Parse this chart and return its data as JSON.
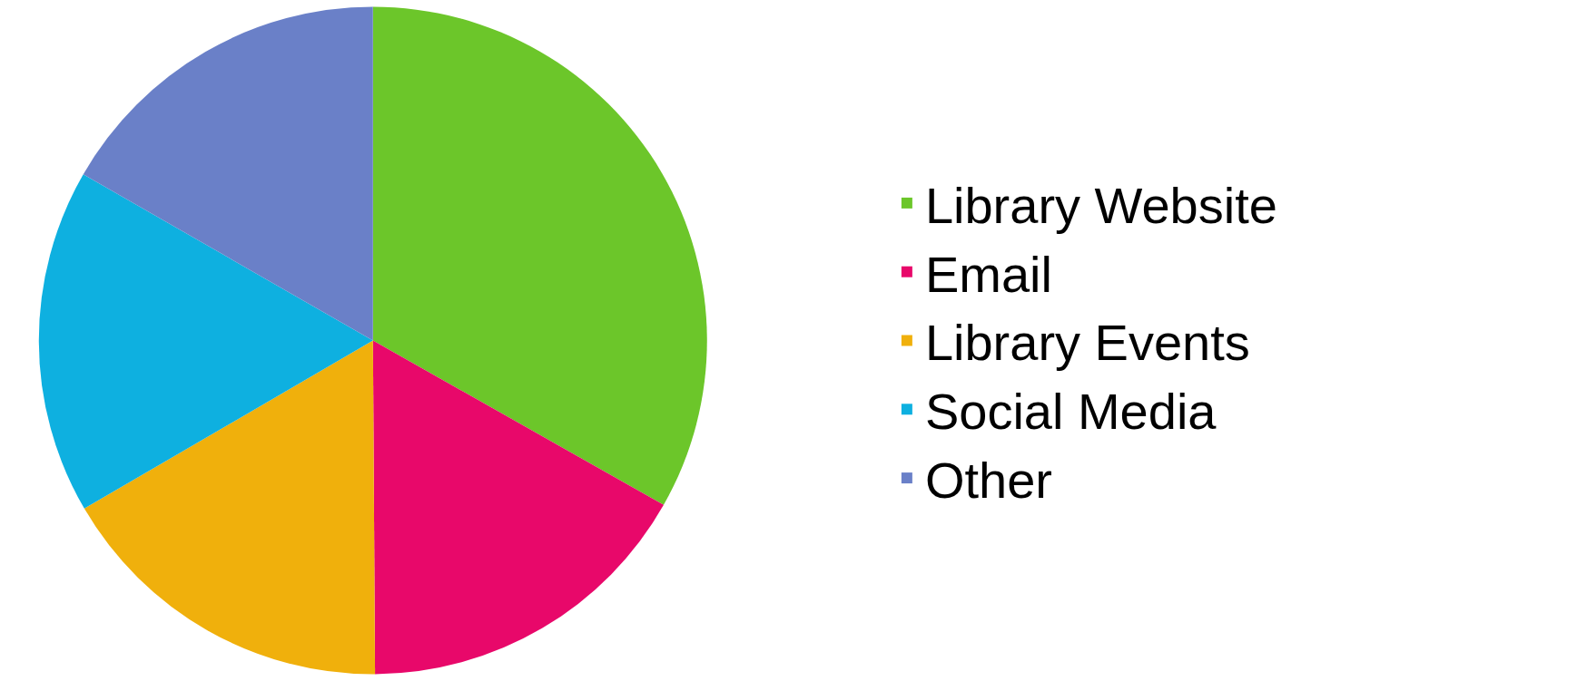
{
  "chart_data": {
    "type": "pie",
    "categories": [
      "Library Website",
      "Email",
      "Library Events",
      "Social Media",
      "Other"
    ],
    "values": [
      33.2,
      16.7,
      16.7,
      16.7,
      16.7
    ],
    "colors": [
      "#6cc62a",
      "#e8086a",
      "#f0b00c",
      "#0eb0e0",
      "#6a80c8"
    ],
    "legend": "right"
  }
}
